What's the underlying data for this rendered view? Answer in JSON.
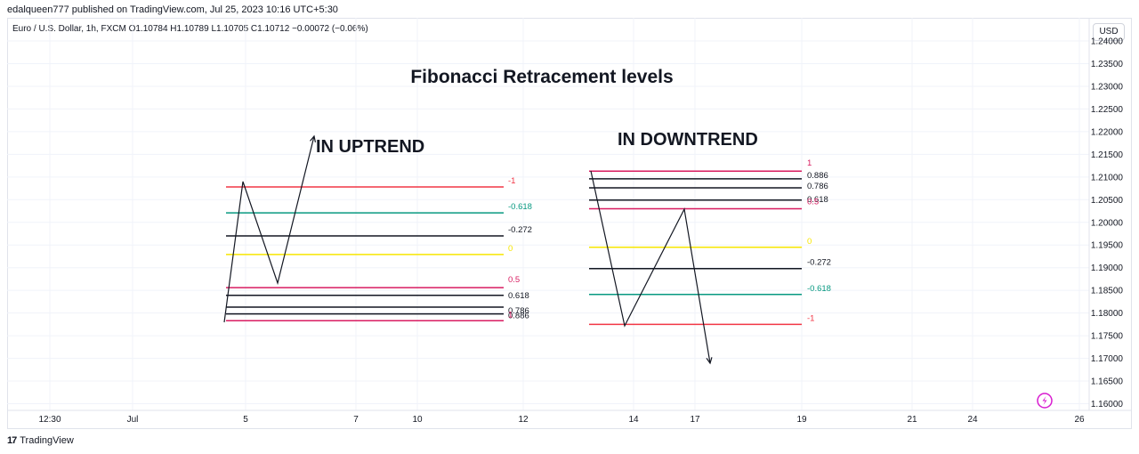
{
  "header": {
    "published_by": "edalqueen777 published on TradingView.com, Jul 25, 2023 10:16 UTC+5:30",
    "symbol_line": "Euro / U.S. Dollar, 1h, FXCM  O1.10784  H1.10789  L1.10705  C1.10712  −0.00072 (−0.06%)",
    "currency_button": "USD"
  },
  "footer": {
    "brand": "TradingView",
    "logo_glyph": "17"
  },
  "colors": {
    "red": "#f23645",
    "green": "#089981",
    "yellow": "#f7e600",
    "pink": "#d81b60",
    "black": "#131722"
  },
  "chart_data": {
    "type": "line",
    "title": "Fibonacci Retracement levels",
    "y_axis": {
      "range": [
        1.158,
        1.241
      ],
      "ticks": [
        "1.24000",
        "1.23500",
        "1.23000",
        "1.22500",
        "1.22000",
        "1.21500",
        "1.21000",
        "1.20500",
        "1.20000",
        "1.19500",
        "1.19000",
        "1.18500",
        "1.18000",
        "1.17500",
        "1.17000",
        "1.16500",
        "1.16000"
      ]
    },
    "x_axis": {
      "ticks": [
        "12:30",
        "Jul",
        "5",
        "7",
        "10",
        "12",
        "14",
        "17",
        "19",
        "21",
        "24",
        "26"
      ]
    },
    "panels": [
      {
        "label": "IN UPTREND",
        "levels": [
          {
            "label": "-1",
            "price": 1.2078,
            "color": "red"
          },
          {
            "label": "-0.618",
            "price": 1.2021,
            "color": "green"
          },
          {
            "label": "-0.272",
            "price": 1.197,
            "color": "black"
          },
          {
            "label": "0",
            "price": 1.1929,
            "color": "yellow"
          },
          {
            "label": "0.5",
            "price": 1.1856,
            "color": "pink"
          },
          {
            "label": "0.618",
            "price": 1.1839,
            "color": "black"
          },
          {
            "label": "0.786",
            "price": 1.1813,
            "color": "black"
          },
          {
            "label": "0.886",
            "price": 1.1798,
            "color": "black"
          },
          {
            "label": "1",
            "price": 1.1783,
            "color": "pink"
          }
        ],
        "path_prices": [
          1.1783,
          1.2093,
          1.1865,
          1.2198
        ]
      },
      {
        "label": "IN DOWNTREND",
        "levels": [
          {
            "label": "1",
            "price": 1.2113,
            "color": "pink"
          },
          {
            "label": "0.886",
            "price": 1.2096,
            "color": "black"
          },
          {
            "label": "0.786",
            "price": 1.2076,
            "color": "black"
          },
          {
            "label": "0.618",
            "price": 1.2049,
            "color": "black"
          },
          {
            "label": "0.5",
            "price": 1.203,
            "color": "pink"
          },
          {
            "label": "0",
            "price": 1.1945,
            "color": "yellow"
          },
          {
            "label": "-0.272",
            "price": 1.1898,
            "color": "black"
          },
          {
            "label": "-0.618",
            "price": 1.1841,
            "color": "green"
          },
          {
            "label": "-1",
            "price": 1.1775,
            "color": "red"
          }
        ],
        "path_prices": [
          1.2113,
          1.1777,
          1.203,
          1.169
        ]
      }
    ]
  }
}
